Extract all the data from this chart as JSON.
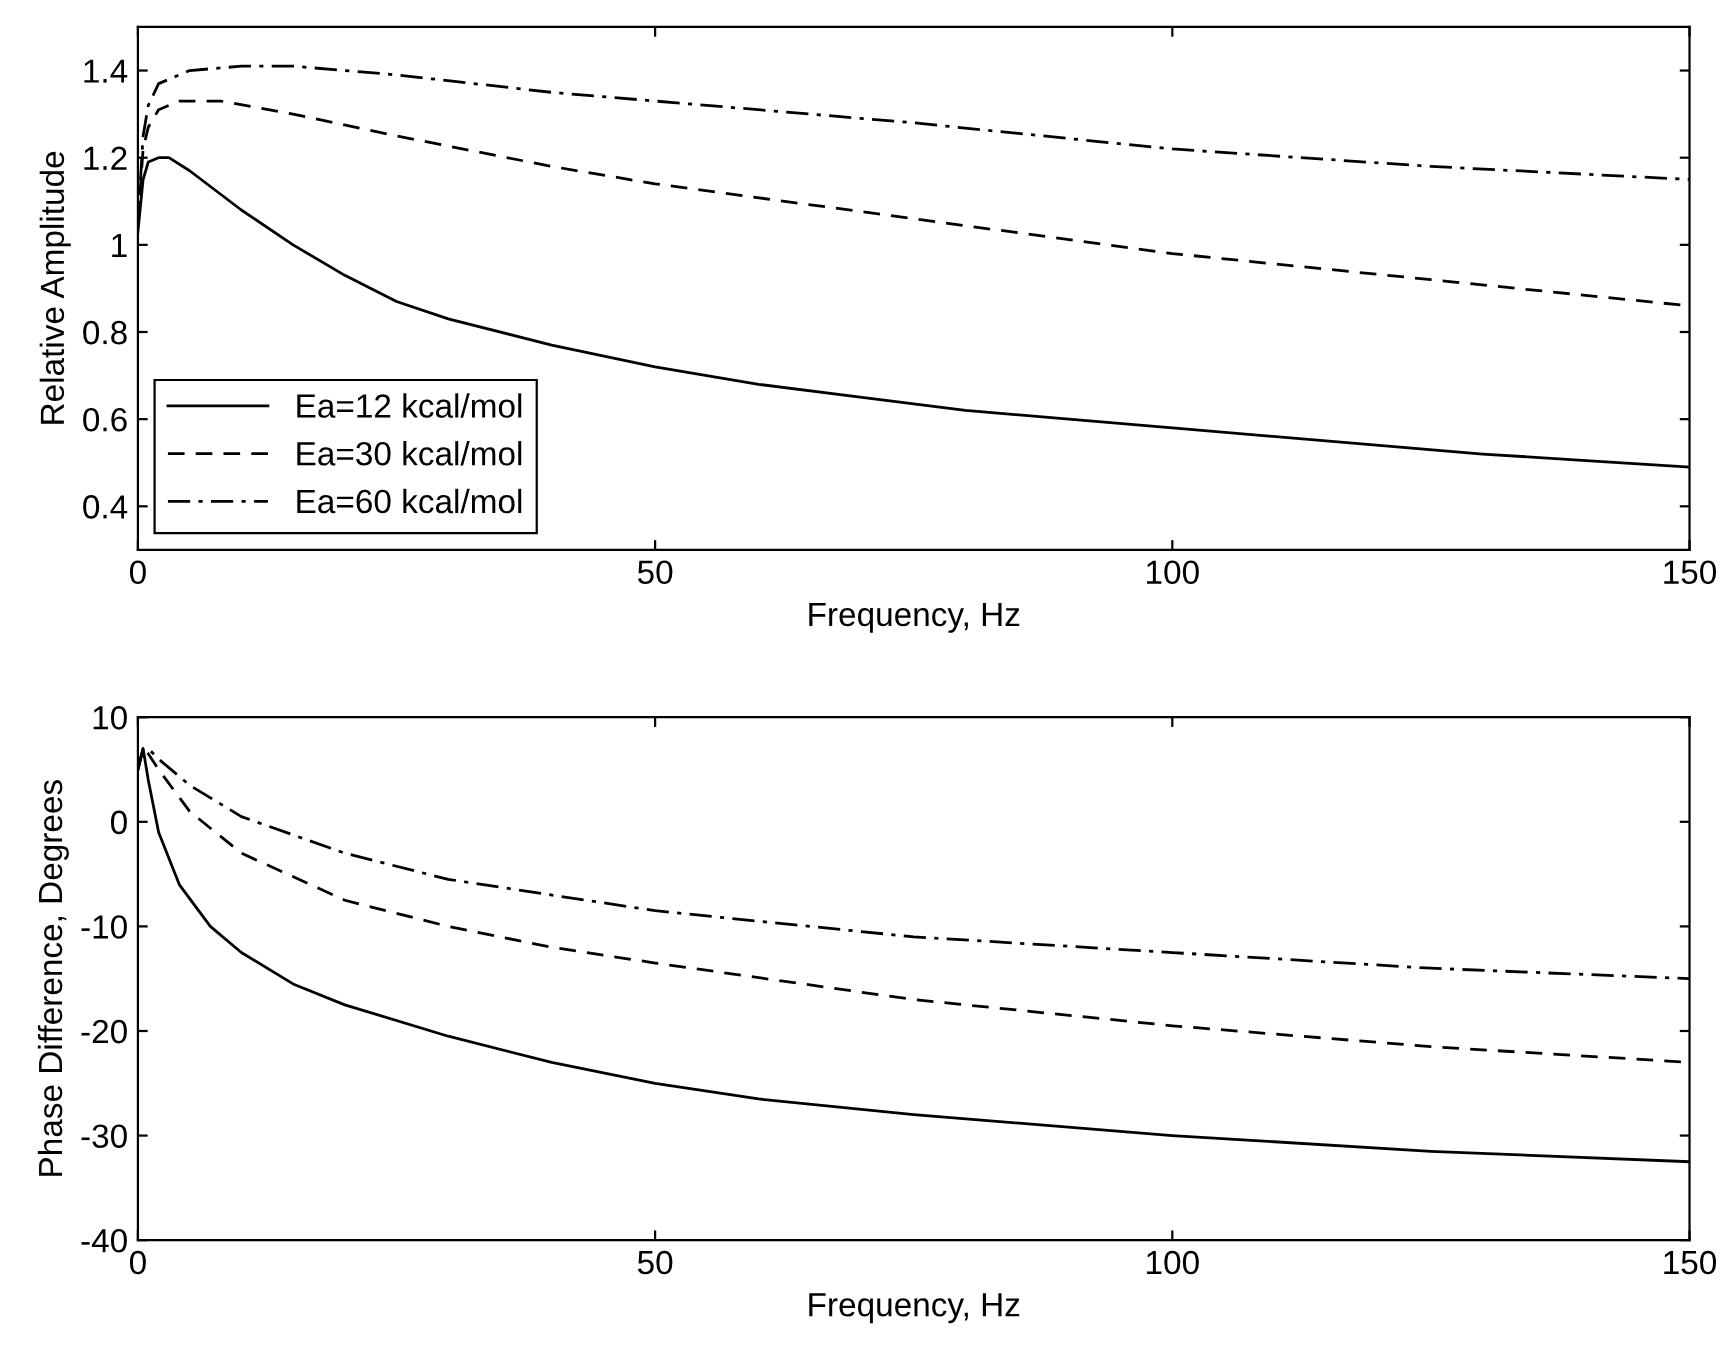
{
  "chart_data": [
    {
      "type": "line",
      "xlabel": "Frequency, Hz",
      "ylabel": "Relative Amplitude",
      "xlim": [
        0,
        150
      ],
      "xticks": [
        0,
        50,
        100,
        150
      ],
      "ylim": [
        0.3,
        1.5
      ],
      "yticks": [
        0.4,
        0.6,
        0.8,
        1,
        1.2,
        1.4
      ],
      "grid": false,
      "legend": "bottom left",
      "series": [
        {
          "name": "Ea=12 kcal/mol",
          "color": "#000000",
          "line_style": "solid",
          "x": [
            0,
            0.5,
            1,
            2,
            3,
            5,
            10,
            15,
            20,
            25,
            30,
            40,
            50,
            60,
            70,
            80,
            90,
            100,
            110,
            120,
            130,
            140,
            150
          ],
          "values": [
            1.03,
            1.15,
            1.19,
            1.2,
            1.2,
            1.17,
            1.08,
            1.0,
            0.93,
            0.87,
            0.83,
            0.77,
            0.72,
            0.68,
            0.65,
            0.62,
            0.6,
            0.58,
            0.56,
            0.54,
            0.52,
            0.505,
            0.49
          ]
        },
        {
          "name": "Ea=30 kcal/mol",
          "color": "#000000",
          "line_style": "dashed",
          "x": [
            0,
            0.5,
            1,
            2,
            4,
            8,
            15,
            25,
            40,
            50,
            75,
            100,
            125,
            150
          ],
          "values": [
            1.05,
            1.22,
            1.27,
            1.31,
            1.33,
            1.33,
            1.3,
            1.25,
            1.18,
            1.14,
            1.06,
            0.98,
            0.92,
            0.86
          ]
        },
        {
          "name": "Ea=60 kcal/mol",
          "color": "#000000",
          "line_style": "dashdot",
          "x": [
            0,
            0.5,
            1,
            2,
            5,
            10,
            15,
            25,
            40,
            50,
            75,
            100,
            125,
            150
          ],
          "values": [
            1.05,
            1.25,
            1.32,
            1.37,
            1.4,
            1.41,
            1.41,
            1.39,
            1.35,
            1.33,
            1.28,
            1.22,
            1.18,
            1.15
          ]
        }
      ]
    },
    {
      "type": "line",
      "xlabel": "Frequency, Hz",
      "ylabel": "Phase Difference, Degrees",
      "xlim": [
        0,
        150
      ],
      "xticks": [
        0,
        50,
        100,
        150
      ],
      "ylim": [
        -40,
        10
      ],
      "yticks": [
        -40,
        -30,
        -20,
        -10,
        0,
        10
      ],
      "grid": false,
      "series": [
        {
          "color": "#000000",
          "line_style": "solid",
          "x": [
            0,
            0.5,
            1,
            2,
            4,
            7,
            10,
            15,
            20,
            30,
            40,
            50,
            60,
            75,
            100,
            125,
            150
          ],
          "values": [
            5,
            7,
            4,
            -1,
            -6,
            -10,
            -12.5,
            -15.5,
            -17.5,
            -20.5,
            -23,
            -25,
            -26.5,
            -28,
            -30,
            -31.5,
            -32.5
          ]
        },
        {
          "color": "#000000",
          "line_style": "dashed",
          "x": [
            0,
            0.5,
            1,
            2,
            5,
            10,
            20,
            30,
            40,
            50,
            75,
            100,
            125,
            150
          ],
          "values": [
            5,
            7,
            6.5,
            5,
            1,
            -3,
            -7.5,
            -10,
            -12,
            -13.5,
            -17,
            -19.5,
            -21.5,
            -23
          ]
        },
        {
          "color": "#000000",
          "line_style": "dashdot",
          "x": [
            0,
            0.5,
            1,
            2,
            5,
            10,
            20,
            30,
            50,
            75,
            100,
            125,
            150
          ],
          "values": [
            5,
            7,
            7,
            6,
            3.5,
            0.5,
            -3,
            -5.5,
            -8.5,
            -11,
            -12.5,
            -14,
            -15
          ]
        }
      ]
    }
  ]
}
